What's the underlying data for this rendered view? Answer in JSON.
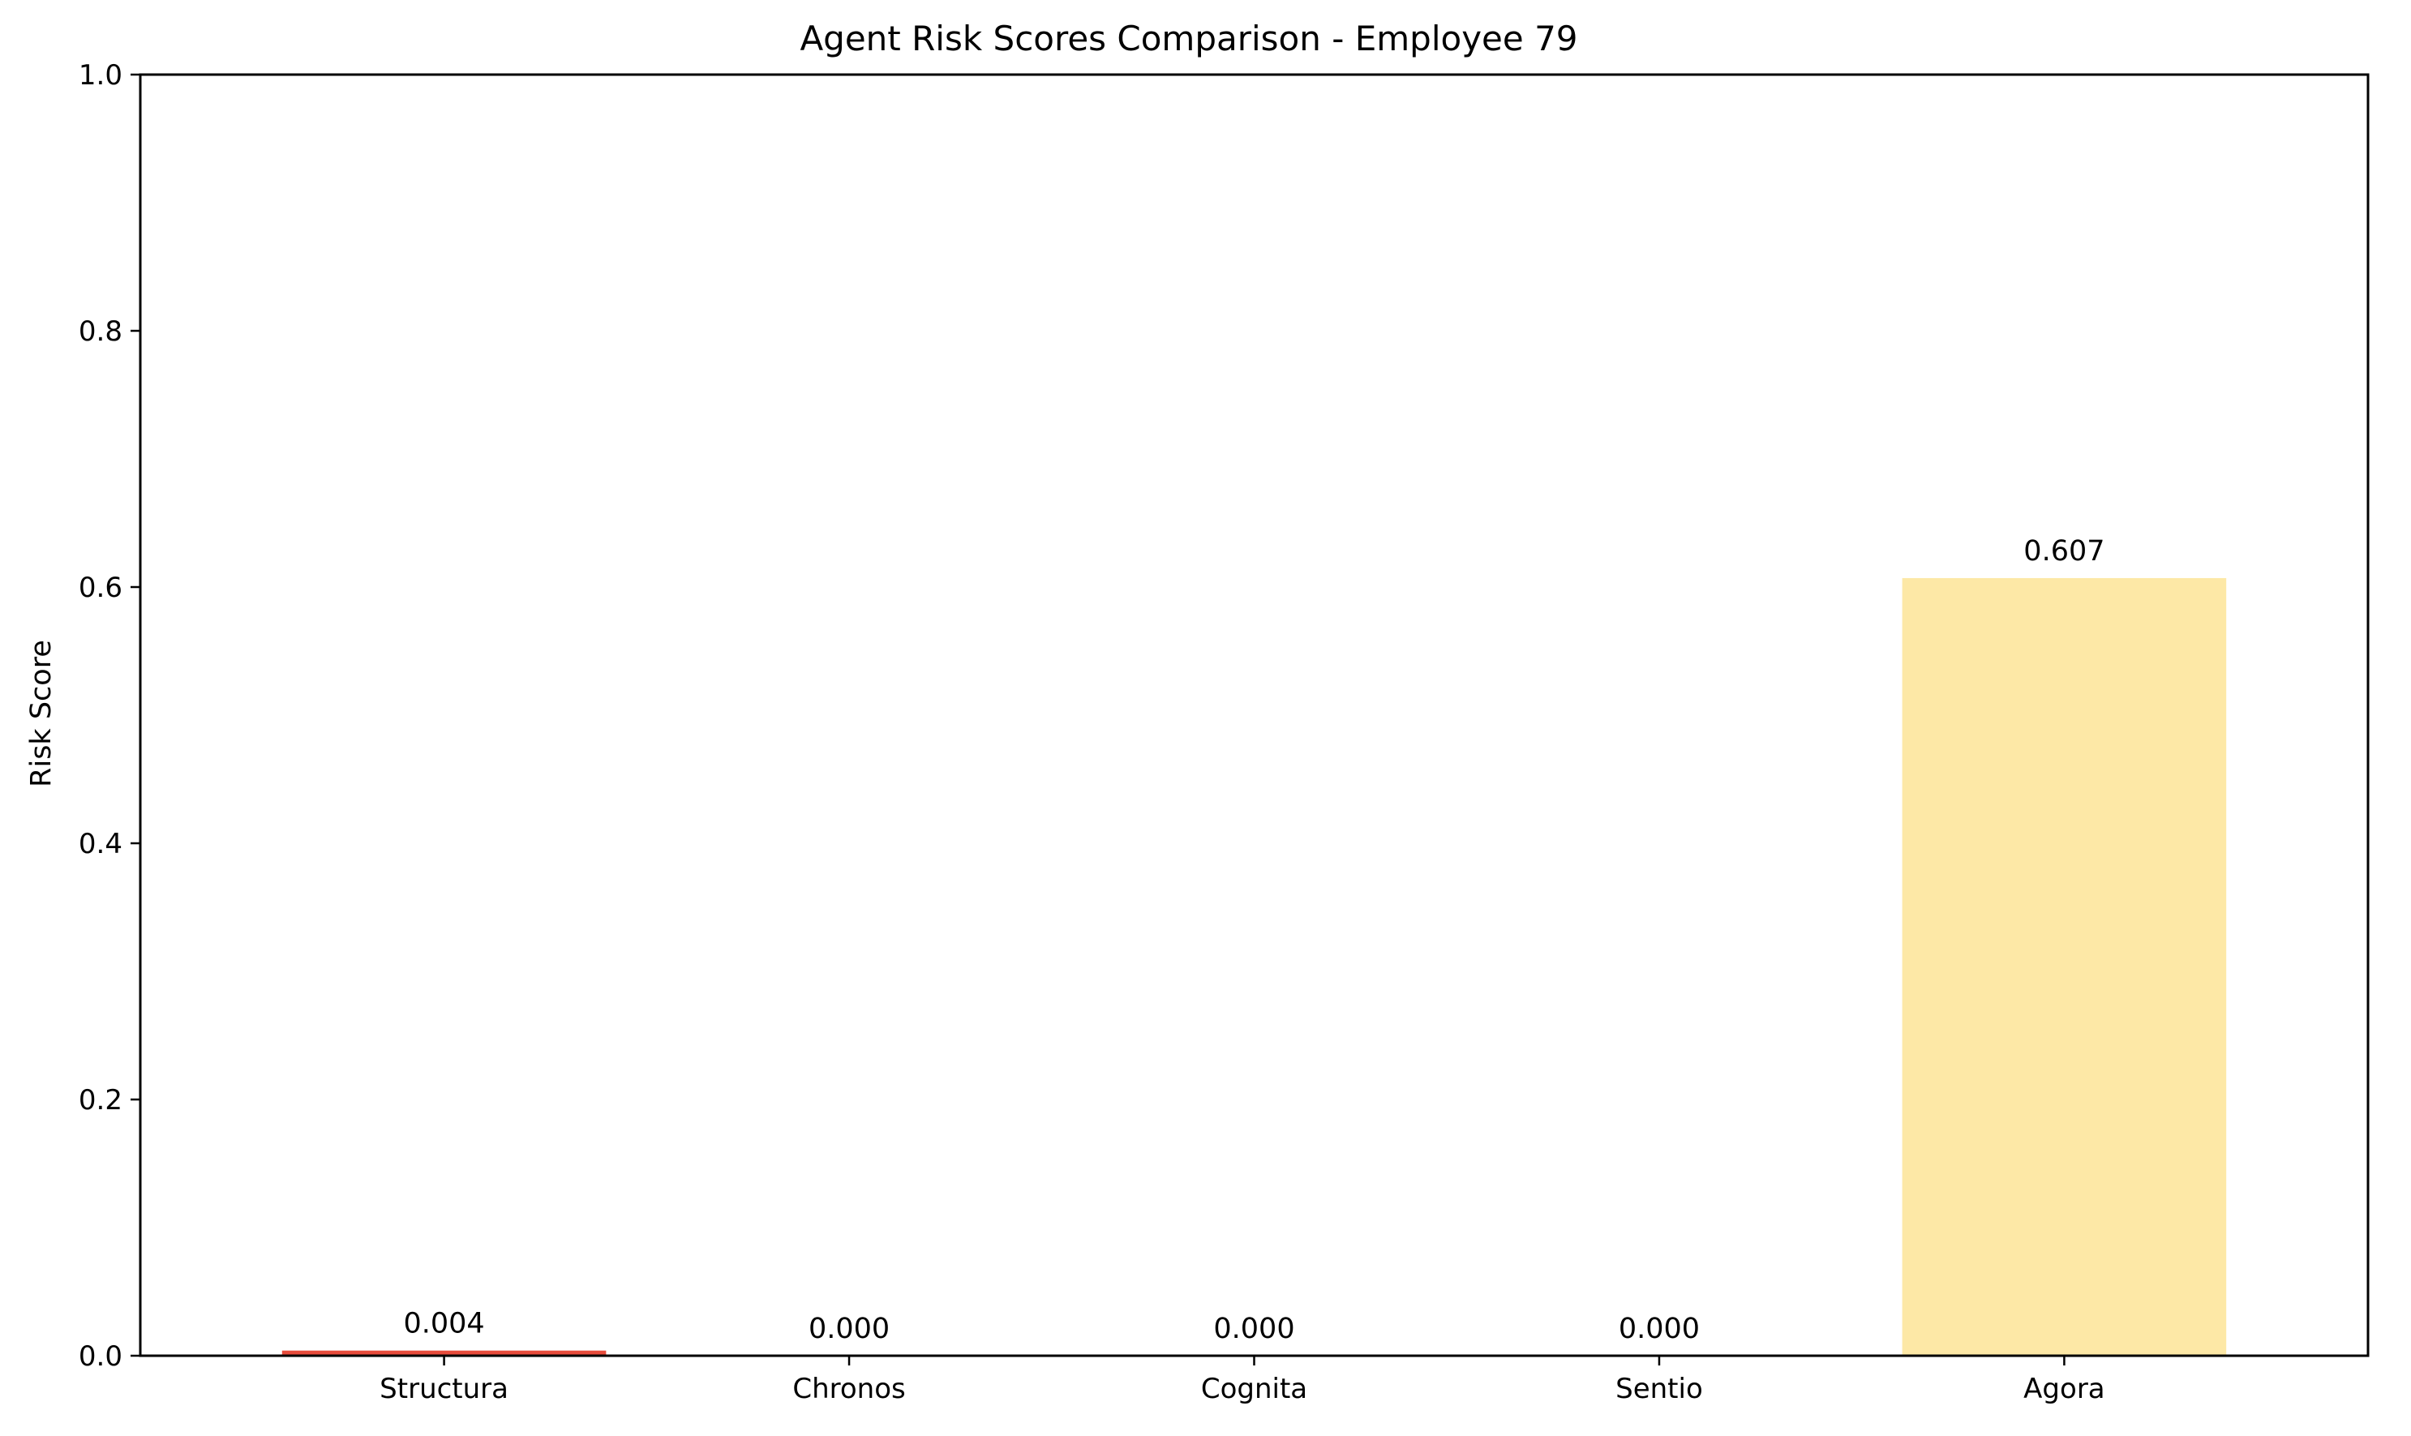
{
  "chart_data": {
    "type": "bar",
    "title": "Agent Risk Scores Comparison - Employee 79",
    "xlabel": "",
    "ylabel": "Risk Score",
    "categories": [
      "Structura",
      "Chronos",
      "Cognita",
      "Sentio",
      "Agora"
    ],
    "values": [
      0.004,
      0.0,
      0.0,
      0.0,
      0.607
    ],
    "value_labels": [
      "0.004",
      "0.000",
      "0.000",
      "0.000",
      "0.607"
    ],
    "bar_colors": [
      "#e74c3c",
      "#3498db",
      "#2ecc71",
      "#9b59b6",
      "#fde8a6"
    ],
    "ylim": [
      0,
      1.0
    ],
    "yticks": [
      "0.0",
      "0.2",
      "0.4",
      "0.6",
      "0.8",
      "1.0"
    ],
    "grid": false,
    "legend": "none"
  }
}
